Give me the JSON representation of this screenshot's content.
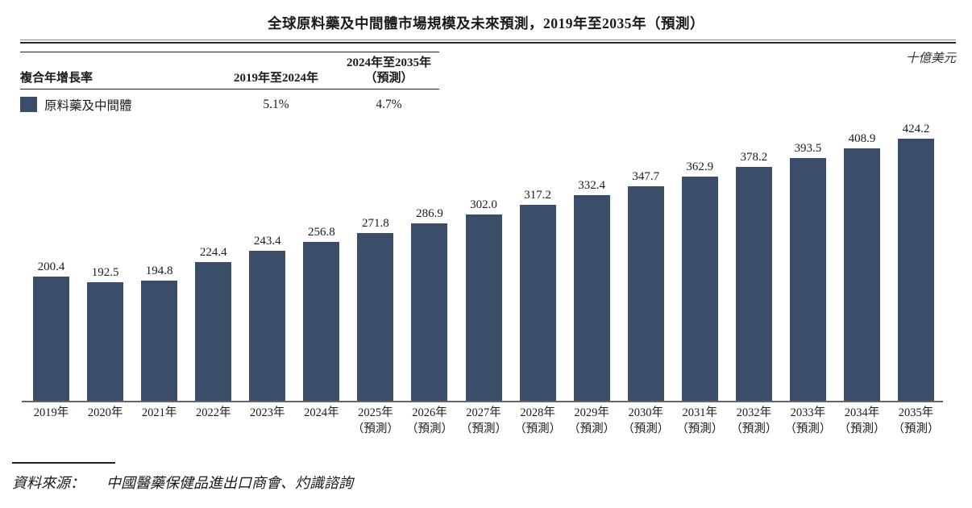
{
  "title": "全球原料藥及中間體市場規模及未來預測，2019年至2035年（預測）",
  "unit_label": "十億美元",
  "cagr_table": {
    "header_label": "複合年增長率",
    "col1_header": "2019年至2024年",
    "col2_header_line1": "2024年至2035年",
    "col2_header_line2": "（預測）",
    "rows": [
      {
        "label": "原料藥及中間體",
        "col1": "5.1%",
        "col2": "4.7%",
        "swatch_color": "#3A4E6A"
      }
    ]
  },
  "chart_data": {
    "type": "bar",
    "title": "全球原料藥及中間體市場規模及未來預測，2019年至2035年（預測）",
    "ylabel": "十億美元",
    "xlabel": "",
    "ylim": [
      0,
      450
    ],
    "grid": false,
    "legend_position": "top-left-table",
    "bar_color": "#3A4E6A",
    "value_labels_shown": true,
    "categories": [
      "2019年",
      "2020年",
      "2021年",
      "2022年",
      "2023年",
      "2024年",
      "2025年",
      "2026年",
      "2027年",
      "2028年",
      "2029年",
      "2030年",
      "2031年",
      "2032年",
      "2033年",
      "2034年",
      "2035年"
    ],
    "category_sublabels": [
      "",
      "",
      "",
      "",
      "",
      "",
      "（預測）",
      "（預測）",
      "（預測）",
      "（預測）",
      "（預測）",
      "（預測）",
      "（預測）",
      "（預測）",
      "（預測）",
      "（預測）",
      "（預測）"
    ],
    "series": [
      {
        "name": "原料藥及中間體",
        "values": [
          200.4,
          192.5,
          194.8,
          224.4,
          243.4,
          256.8,
          271.8,
          286.9,
          302.0,
          317.2,
          332.4,
          347.7,
          362.9,
          378.2,
          393.5,
          408.9,
          424.2
        ]
      }
    ],
    "cagr_2019_2024": "5.1%",
    "cagr_2024_2035_forecast": "4.7%"
  },
  "source": {
    "label": "資料來源：",
    "text": "中國醫藥保健品進出口商會、灼識諮詢"
  }
}
